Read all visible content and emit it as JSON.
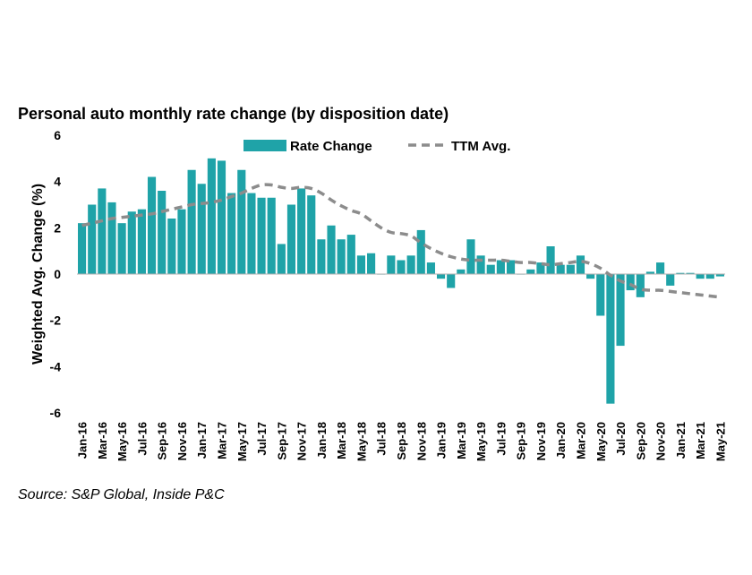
{
  "chart_data": {
    "type": "bar+line",
    "title": "Personal auto monthly rate change (by disposition date)",
    "ylabel": "Weighted Avg. Change (%)",
    "xlabel": "",
    "ylim": [
      -6,
      6
    ],
    "yticks": [
      6,
      4,
      2,
      0,
      -2,
      -4,
      -6
    ],
    "x_tick_labels": [
      "Jan-16",
      "Mar-16",
      "May-16",
      "Jul-16",
      "Sep-16",
      "Nov-16",
      "Jan-17",
      "Mar-17",
      "May-17",
      "Jul-17",
      "Sep-17",
      "Nov-17",
      "Jan-18",
      "Mar-18",
      "May-18",
      "Jul-18",
      "Sep-18",
      "Nov-18",
      "Jan-19",
      "Mar-19",
      "May-19",
      "Jul-19",
      "Sep-19",
      "Nov-19",
      "Jan-20",
      "Mar-20",
      "May-20",
      "Jul-20",
      "Sep-20",
      "Nov-20",
      "Jan-21",
      "Mar-21",
      "May-21"
    ],
    "categories": [
      "Jan-16",
      "Feb-16",
      "Mar-16",
      "Apr-16",
      "May-16",
      "Jun-16",
      "Jul-16",
      "Aug-16",
      "Sep-16",
      "Oct-16",
      "Nov-16",
      "Dec-16",
      "Jan-17",
      "Feb-17",
      "Mar-17",
      "Apr-17",
      "May-17",
      "Jun-17",
      "Jul-17",
      "Aug-17",
      "Sep-17",
      "Oct-17",
      "Nov-17",
      "Dec-17",
      "Jan-18",
      "Feb-18",
      "Mar-18",
      "Apr-18",
      "May-18",
      "Jun-18",
      "Jul-18",
      "Aug-18",
      "Sep-18",
      "Oct-18",
      "Nov-18",
      "Dec-18",
      "Jan-19",
      "Feb-19",
      "Mar-19",
      "Apr-19",
      "May-19",
      "Jun-19",
      "Jul-19",
      "Aug-19",
      "Sep-19",
      "Oct-19",
      "Nov-19",
      "Dec-19",
      "Jan-20",
      "Feb-20",
      "Mar-20",
      "Apr-20",
      "May-20",
      "Jun-20",
      "Jul-20",
      "Aug-20",
      "Sep-20",
      "Oct-20",
      "Nov-20",
      "Dec-20",
      "Jan-21",
      "Feb-21",
      "Mar-21",
      "Apr-21",
      "May-21"
    ],
    "series": [
      {
        "name": "Rate Change",
        "type": "bar",
        "color": "#1fa3a8",
        "values": [
          2.2,
          3.0,
          3.7,
          3.1,
          2.2,
          2.7,
          2.8,
          4.2,
          3.6,
          2.4,
          2.8,
          4.5,
          3.9,
          5.0,
          4.9,
          3.5,
          4.5,
          3.5,
          3.3,
          3.3,
          1.3,
          3.0,
          3.7,
          3.4,
          1.5,
          2.1,
          1.5,
          1.7,
          0.8,
          0.9,
          0.0,
          0.8,
          0.6,
          0.8,
          1.9,
          0.5,
          -0.2,
          -0.6,
          0.2,
          1.5,
          0.8,
          0.4,
          0.6,
          0.6,
          0.0,
          0.2,
          0.5,
          1.2,
          0.4,
          0.4,
          0.8,
          -0.2,
          -1.8,
          -5.6,
          -3.1,
          -0.7,
          -1.0,
          0.1,
          0.5,
          -0.5,
          0.05,
          0.05,
          -0.2,
          -0.2,
          -0.1
        ]
      },
      {
        "name": "TTM Avg.",
        "type": "line",
        "style": "dashed",
        "color": "#8c8c8c",
        "values": [
          2.1,
          2.2,
          2.3,
          2.4,
          2.45,
          2.5,
          2.55,
          2.6,
          2.7,
          2.8,
          2.9,
          3.0,
          3.05,
          3.1,
          3.2,
          3.35,
          3.5,
          3.7,
          3.85,
          3.85,
          3.75,
          3.7,
          3.75,
          3.7,
          3.5,
          3.2,
          2.95,
          2.75,
          2.6,
          2.3,
          2.0,
          1.8,
          1.75,
          1.65,
          1.35,
          1.1,
          0.9,
          0.75,
          0.65,
          0.6,
          0.6,
          0.6,
          0.6,
          0.55,
          0.5,
          0.5,
          0.45,
          0.4,
          0.45,
          0.5,
          0.55,
          0.45,
          0.25,
          -0.05,
          -0.3,
          -0.45,
          -0.65,
          -0.7,
          -0.7,
          -0.75,
          -0.8,
          -0.85,
          -0.9,
          -0.95,
          -1.0
        ]
      }
    ],
    "legend": {
      "placement": "top-center",
      "items": [
        "Rate Change",
        "TTM Avg."
      ]
    },
    "grid": false
  },
  "source": "Source: S&P Global, Inside P&C"
}
